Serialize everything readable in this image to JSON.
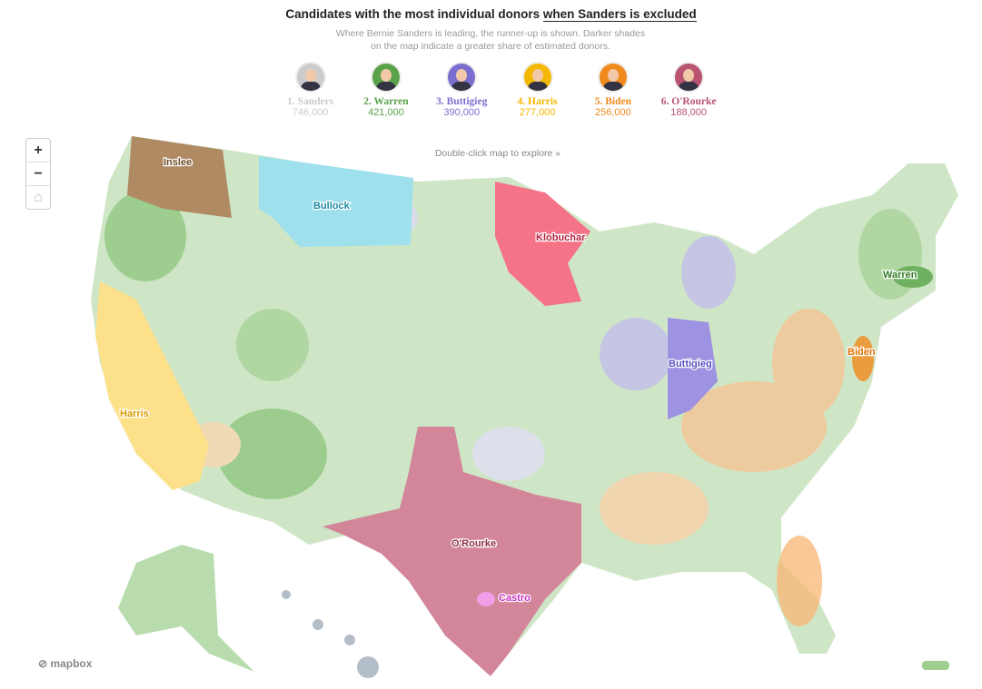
{
  "title": {
    "prefix": "Candidates with the most individual donors ",
    "emphasis": "when Sanders is excluded"
  },
  "subtitle": "Where Bernie Sanders is leading, the runner-up is shown. Darker shades on the map indicate a greater share of estimated donors.",
  "candidates": [
    {
      "name": "1. Sanders",
      "donors": "746,000",
      "color": "#cccccc"
    },
    {
      "name": "2. Warren",
      "donors": "421,000",
      "color": "#5aa34a"
    },
    {
      "name": "3. Buttigieg",
      "donors": "390,000",
      "color": "#7a6fd0"
    },
    {
      "name": "4. Harris",
      "donors": "277,000",
      "color": "#f5b800"
    },
    {
      "name": "5. Biden",
      "donors": "256,000",
      "color": "#f08a1c"
    },
    {
      "name": "6. O'Rourke",
      "donors": "188,000",
      "color": "#b85470"
    }
  ],
  "explore_hint": "Double-click map to explore »",
  "map_labels": {
    "inslee": "Inslee",
    "bullock": "Bullock",
    "klobuchar": "Klobuchar",
    "warren": "Warren",
    "biden": "Biden",
    "buttigieg": "Buttigieg",
    "harris": "Harris",
    "orourke": "O'Rourke",
    "castro": "Castro"
  },
  "zoom_controls": {
    "zoom_in": "+",
    "zoom_out": "−",
    "home": "⌂"
  },
  "attribution": "mapbox"
}
